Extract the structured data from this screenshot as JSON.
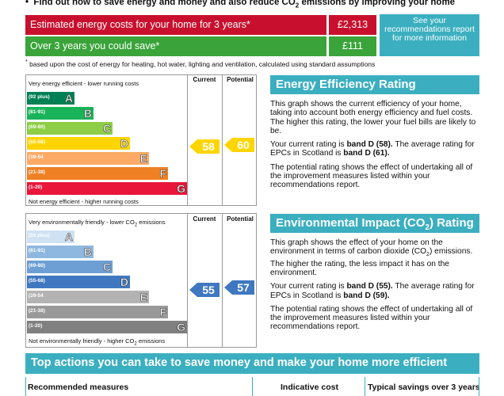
{
  "header": {
    "bullet": "•",
    "line_pre": "Find out how to save energy and money and also reduce CO",
    "line_sub": "2",
    "line_post": " emissions by improving your home"
  },
  "costs": {
    "estimated_label": "Estimated energy costs for your home for 3 years*",
    "estimated_value": "£2,313",
    "save_label": "Over 3 years you could save*",
    "save_value": "£111",
    "see_recommendations": "See your recommendations report for more information",
    "footnote_mark": "*",
    "footnote": " based upon the cost of energy for heating, hot water, lighting and ventilation, calculated using standard assumptions"
  },
  "energy_chart": {
    "top_text": "Very energy efficient - lower running costs",
    "bottom_text": "Not energy efficient - higher running costs",
    "current_header": "Current",
    "potential_header": "Potential",
    "bands": [
      {
        "range": "(92 plus)",
        "letter": "A",
        "color": "#008054"
      },
      {
        "range": "(81-91)",
        "letter": "B",
        "color": "#19b459"
      },
      {
        "range": "(69-80)",
        "letter": "C",
        "color": "#8dce46"
      },
      {
        "range": "(55-68)",
        "letter": "D",
        "color": "#ffd500"
      },
      {
        "range": "(39-54",
        "letter": "E",
        "color": "#fcaa65"
      },
      {
        "range": "(21-38)",
        "letter": "F",
        "color": "#ef8023"
      },
      {
        "range": "(1-20)",
        "letter": "G",
        "color": "#e9153b"
      }
    ],
    "current": "58",
    "potential": "60",
    "arrow_color": "#ffd500"
  },
  "environment_chart": {
    "top_pre": "Very environmentally friendly - lower CO",
    "top_sub": "2",
    "top_post": " emissions",
    "bottom_pre": "Not environmentally friendly - higher CO",
    "bottom_sub": "2",
    "bottom_post": " emissions",
    "current_header": "Current",
    "potential_header": "Potential",
    "bands": [
      {
        "range": "(92 plus)",
        "letter": "A",
        "color": "#cfe2f3"
      },
      {
        "range": "(81-91)",
        "letter": "B",
        "color": "#8fb8e0"
      },
      {
        "range": "(69-80)",
        "letter": "C",
        "color": "#6d9fd4"
      },
      {
        "range": "(55-68)",
        "letter": "D",
        "color": "#3f78c0"
      },
      {
        "range": "(39-54",
        "letter": "E",
        "color": "#b3b3b3"
      },
      {
        "range": "(21-38)",
        "letter": "F",
        "color": "#999999"
      },
      {
        "range": "(1-20)",
        "letter": "G",
        "color": "#808080"
      }
    ],
    "current": "55",
    "potential": "57",
    "arrow_color": "#3f78c0"
  },
  "energy_info": {
    "title": "Energy Efficiency Rating",
    "p1": "This graph shows the current efficiency of your home, taking into account both energy efficiency and fuel costs. The higher this rating, the lower your fuel bills are likely to be.",
    "p2_pre": "Your current rating is ",
    "p2_b1": "band D (58).",
    "p2_mid": " The average rating for EPCs in Scotland is ",
    "p2_b2": "band D (61).",
    "p3": "The potential rating shows the effect of undertaking all of the improvement measures listed within your recommendations report."
  },
  "env_info": {
    "title_pre": "Environmental Impact (CO",
    "title_sub": "2",
    "title_post": ") Rating",
    "p1_pre": "This graph shows the effect of your home on the environment in terms of carbon dioxide (CO",
    "p1_sub": "2",
    "p1_post": ") emissions. The higher the rating, the less impact it has on the environment.",
    "p2_pre": "Your current rating is ",
    "p2_b1": "band D (55).",
    "p2_mid": " The average rating for EPCs in Scotland is ",
    "p2_b2": "band D (59).",
    "p3": "The potential rating shows the effect of undertaking all of the improvement measures listed within your recommendations report."
  },
  "actions": {
    "title": "Top actions you can take to save money and make your home more efficient",
    "col1": "Recommended measures",
    "col2": "Indicative cost",
    "col3": "Typical savings over 3 years"
  }
}
